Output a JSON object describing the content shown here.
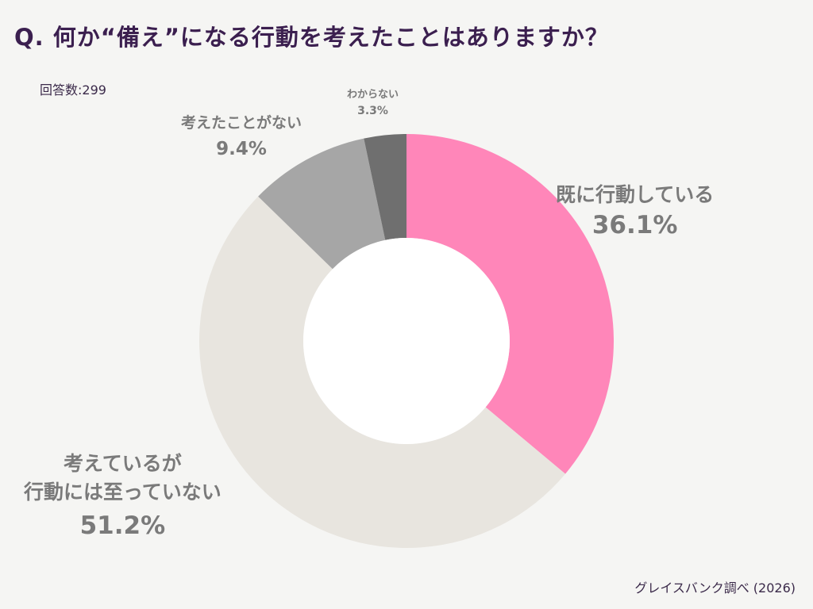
{
  "title": "Q. 何か“備え”になる行動を考えたことはありますか？",
  "respondents": "回答数:299",
  "source": "グレイスバンク調べ (2026)",
  "chart_data": {
    "type": "pie",
    "donut": true,
    "slices": [
      {
        "label": "既に行動している",
        "value": 36.1,
        "value_label": "36.1%",
        "color": "#ff86b9"
      },
      {
        "label_lines": [
          "考えているが",
          "行動には至っていない"
        ],
        "value": 51.2,
        "value_label": "51.2%",
        "color": "#e8e5df"
      },
      {
        "label": "考えたことがない",
        "value": 9.4,
        "value_label": "9.4%",
        "color": "#a6a6a6"
      },
      {
        "label": "わからない",
        "value": 3.3,
        "value_label": "3.3%",
        "color": "#6f6f6f"
      }
    ]
  }
}
